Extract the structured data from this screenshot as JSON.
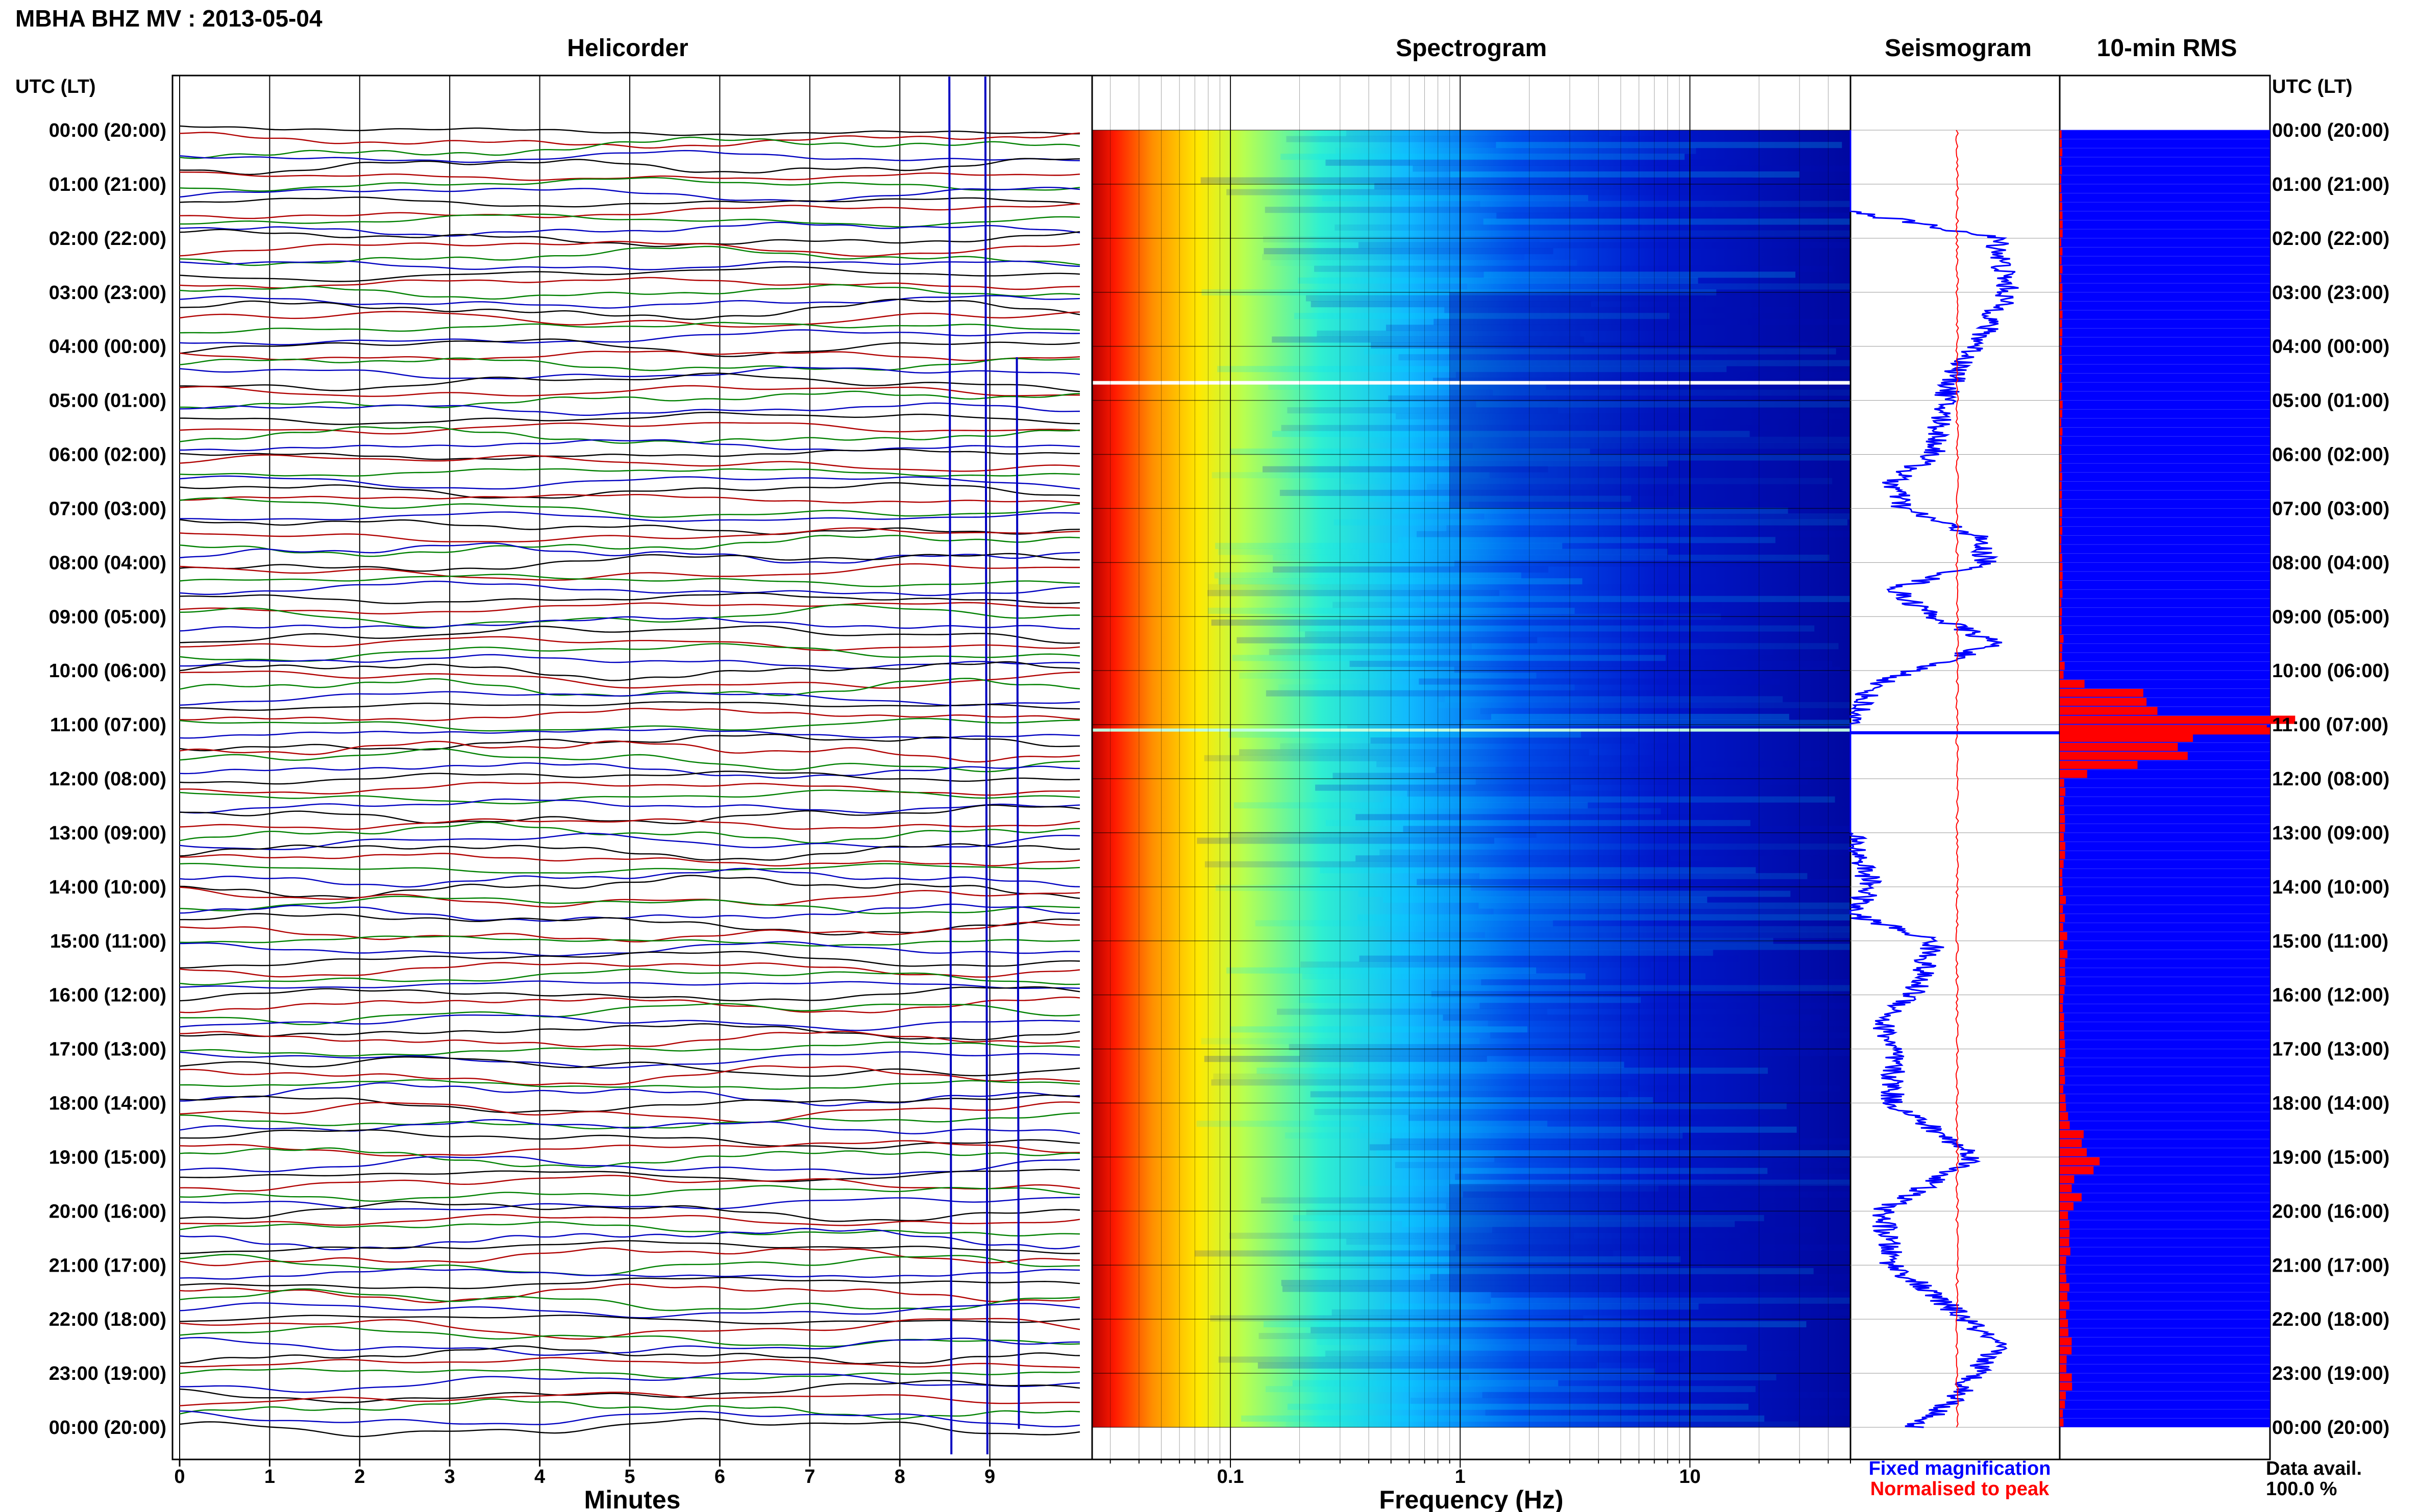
{
  "title": "MBHA BHZ MV : 2013-05-04",
  "panels": {
    "helicorder": "Helicorder",
    "spectrogram": "Spectrogram",
    "seismogram": "Seismogram",
    "rms": "10-min RMS"
  },
  "utc_header_left": "UTC (LT)",
  "utc_header_right": "UTC (LT)",
  "time_labels": [
    "00:00 (20:00)",
    "01:00 (21:00)",
    "02:00 (22:00)",
    "03:00 (23:00)",
    "04:00 (00:00)",
    "05:00 (01:00)",
    "06:00 (02:00)",
    "07:00 (03:00)",
    "08:00 (04:00)",
    "09:00 (05:00)",
    "10:00 (06:00)",
    "11:00 (07:00)",
    "12:00 (08:00)",
    "13:00 (09:00)",
    "14:00 (10:00)",
    "15:00 (11:00)",
    "16:00 (12:00)",
    "17:00 (13:00)",
    "18:00 (14:00)",
    "19:00 (15:00)",
    "20:00 (16:00)",
    "21:00 (17:00)",
    "22:00 (18:00)",
    "23:00 (19:00)",
    "00:00 (20:00)"
  ],
  "helicorder": {
    "xlabel": "Minutes",
    "xticks": [
      "0",
      "1",
      "2",
      "3",
      "4",
      "5",
      "6",
      "7",
      "8",
      "9"
    ],
    "xlim": [
      0,
      10
    ],
    "trace_colors": [
      "#000000",
      "#b00000",
      "#008000",
      "#0000c0"
    ],
    "traces_per_hour": 6
  },
  "spectrogram": {
    "xlabel": "Frequency (Hz)",
    "scale": "log",
    "xlim": [
      0.025,
      50
    ],
    "xticks": [
      "0.1",
      "1",
      "10"
    ],
    "colormap": [
      "#b40000",
      "#ff0000",
      "#ff8000",
      "#ffff00",
      "#80ff80",
      "#00ffff",
      "#0080ff",
      "#0000ff",
      "#00008c"
    ]
  },
  "seismogram": {
    "legend_fixed": "Fixed magnification",
    "legend_normalised": "Normalised to peak",
    "fixed_color": "#0000ff",
    "normalised_color": "#ff0000"
  },
  "rms": {
    "bar_color": "#0000ff",
    "peak_color": "#ff0000",
    "data_avail_label": "Data avail.",
    "data_avail_value": "100.0 %"
  },
  "chart_data": [
    {
      "type": "line",
      "panel": "helicorder",
      "xlabel": "Minutes",
      "ylabel": "UTC (LT)",
      "xlim": [
        0,
        10
      ],
      "note_hours": [
        0,
        24
      ],
      "traces_per_hour": 6,
      "colors": [
        "black",
        "red",
        "green",
        "blue"
      ]
    },
    {
      "type": "heatmap",
      "panel": "spectrogram",
      "xlabel": "Frequency (Hz)",
      "xscale": "log",
      "xlim": [
        0.025,
        50
      ],
      "y_hours": [
        0,
        24
      ],
      "gap_rows_hours": [
        4.67,
        11.1
      ]
    },
    {
      "type": "line",
      "panel": "seismogram",
      "series": [
        {
          "name": "Fixed magnification",
          "hours": [
            0,
            1.5,
            2,
            3,
            4,
            4.5,
            5,
            6,
            6.5,
            7,
            7.5,
            8,
            8.5,
            9,
            9.5,
            10,
            10.3,
            11,
            12,
            13,
            14,
            14.5,
            15,
            16,
            16.5,
            17,
            18,
            19,
            20,
            21,
            22,
            22.5,
            23,
            23.5,
            24
          ],
          "values": [
            0,
            0,
            0.7,
            0.75,
            0.6,
            0.5,
            0.45,
            0.4,
            0.2,
            0.25,
            0.6,
            0.65,
            0.2,
            0.4,
            0.7,
            0.3,
            0.1,
            0,
            0,
            0,
            0.1,
            0,
            0.4,
            0.3,
            0.15,
            0.2,
            0.2,
            0.6,
            0.15,
            0.2,
            0.55,
            0.7,
            0.6,
            0.5,
            0.3
          ]
        },
        {
          "name": "Normalised to peak",
          "hours": [
            0,
            24
          ],
          "values": [
            0,
            0
          ]
        }
      ]
    },
    {
      "type": "bar",
      "panel": "10-min RMS",
      "hours": [
        0,
        1,
        2,
        3,
        4,
        5,
        6,
        7,
        8,
        9,
        10,
        11,
        12,
        13,
        14,
        15,
        16,
        17,
        18,
        19,
        20,
        21,
        22,
        23,
        24
      ],
      "values": [
        0.01,
        0.01,
        0.01,
        0.01,
        0.01,
        0.01,
        0.01,
        0.01,
        0.01,
        0.01,
        0.02,
        1,
        0.02,
        0.02,
        0.02,
        0.03,
        0.02,
        0.02,
        0.03,
        0.14,
        0.05,
        0.03,
        0.04,
        0.05,
        0.01
      ]
    }
  ]
}
